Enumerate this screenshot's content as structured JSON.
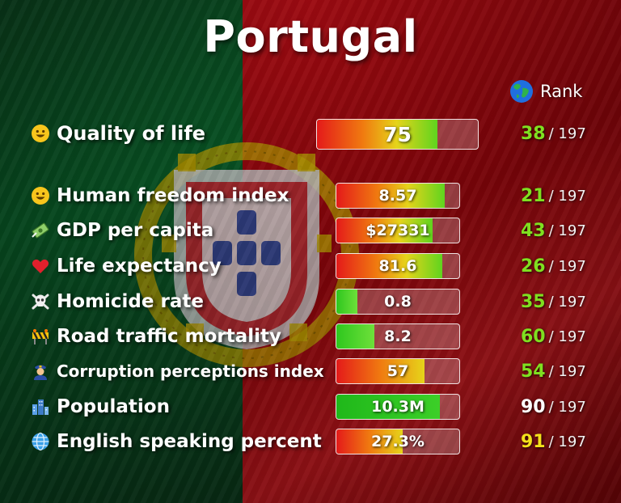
{
  "title": "Portugal",
  "rank_header": {
    "label": "Rank",
    "icon": "globe-icon"
  },
  "rank_total": "/ 197",
  "colors": {
    "flag_green": "#0a6b2e",
    "flag_red": "#c40e17",
    "emblem_gold": "#e2c400",
    "rank_green": "#7fe020",
    "rank_yellow": "#f4e21a",
    "rank_white": "#ffffff"
  },
  "indicators": [
    {
      "id": "quality-of-life",
      "icon": "smiley-icon",
      "label": "Quality of life",
      "value": "75",
      "fill": 0.75,
      "fill_color": "red-green",
      "rank": "38",
      "rank_color": "#7fe020"
    },
    {
      "id": "human-freedom-index",
      "icon": "smiley-icon",
      "label": "Human freedom index",
      "value": "8.57",
      "fill": 0.88,
      "fill_color": "red-green",
      "rank": "21",
      "rank_color": "#7fe020"
    },
    {
      "id": "gdp-per-capita",
      "icon": "money-icon",
      "label": "GDP per capita",
      "value": "$27331",
      "fill": 0.78,
      "fill_color": "red-green",
      "rank": "43",
      "rank_color": "#7fe020"
    },
    {
      "id": "life-expectancy",
      "icon": "heart-icon",
      "label": "Life expectancy",
      "value": "81.6",
      "fill": 0.86,
      "fill_color": "red-green",
      "rank": "26",
      "rank_color": "#7fe020"
    },
    {
      "id": "homicide-rate",
      "icon": "skull-icon",
      "label": "Homicide rate",
      "value": "0.8",
      "fill": 0.17,
      "fill_color": "green",
      "rank": "35",
      "rank_color": "#7fe020"
    },
    {
      "id": "road-traffic-mortality",
      "icon": "roadblock-icon",
      "label": "Road traffic mortality",
      "value": "8.2",
      "fill": 0.31,
      "fill_color": "green",
      "rank": "60",
      "rank_color": "#7fe020"
    },
    {
      "id": "corruption-perceptions-index",
      "icon": "police-icon",
      "label": "Corruption perceptions index",
      "value": "57",
      "fill": 0.72,
      "fill_color": "red-yellow",
      "rank": "54",
      "rank_color": "#7fe020"
    },
    {
      "id": "population",
      "icon": "city-icon",
      "label": "Population",
      "value": "10.3M",
      "fill": 0.84,
      "fill_color": "green-solid",
      "rank": "90",
      "rank_color": "#ffffff"
    },
    {
      "id": "english-speaking-percent",
      "icon": "globe-grid-icon",
      "label": "English speaking percent",
      "value": "27.3%",
      "fill": 0.54,
      "fill_color": "red-yellow",
      "rank": "91",
      "rank_color": "#f4e21a"
    }
  ]
}
